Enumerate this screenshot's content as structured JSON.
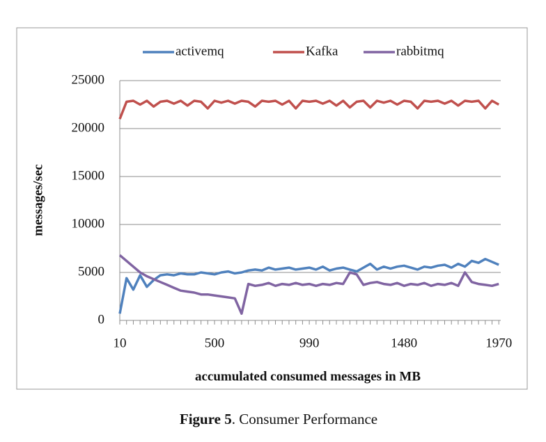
{
  "chart_data": {
    "type": "line",
    "caption_label": "Figure 5",
    "caption_text": ". Consumer Performance",
    "x_label": "accumulated consumed messages in MB",
    "y_label": "messages/sec",
    "legend": "top",
    "grid": true,
    "x": [
      10,
      45,
      80,
      115,
      150,
      185,
      220,
      255,
      290,
      325,
      360,
      395,
      430,
      465,
      500,
      535,
      570,
      605,
      640,
      675,
      710,
      745,
      780,
      815,
      850,
      885,
      920,
      955,
      990,
      1025,
      1060,
      1095,
      1130,
      1165,
      1200,
      1235,
      1270,
      1305,
      1340,
      1375,
      1410,
      1445,
      1480,
      1515,
      1550,
      1585,
      1620,
      1655,
      1690,
      1725,
      1760,
      1795,
      1830,
      1865,
      1900,
      1935,
      1970
    ],
    "series": [
      {
        "name": "activemq",
        "color": "#4f81bd",
        "values": [
          700,
          4400,
          3200,
          4700,
          3500,
          4200,
          4700,
          4800,
          4700,
          4900,
          4800,
          4800,
          5000,
          4900,
          4800,
          5000,
          5100,
          4900,
          5000,
          5200,
          5300,
          5200,
          5500,
          5300,
          5400,
          5500,
          5300,
          5400,
          5500,
          5300,
          5600,
          5200,
          5400,
          5500,
          5300,
          5100,
          5500,
          5900,
          5300,
          5600,
          5400,
          5600,
          5700,
          5500,
          5300,
          5600,
          5500,
          5700,
          5800,
          5500,
          5900,
          5600,
          6200,
          6000,
          6400,
          6100,
          5800
        ]
      },
      {
        "name": "Kafka",
        "color": "#c0504d",
        "values": [
          21000,
          22800,
          22900,
          22500,
          22900,
          22300,
          22800,
          22900,
          22600,
          22900,
          22400,
          22900,
          22800,
          22100,
          22900,
          22700,
          22900,
          22600,
          22900,
          22800,
          22300,
          22900,
          22800,
          22900,
          22500,
          22900,
          22100,
          22900,
          22800,
          22900,
          22600,
          22900,
          22400,
          22900,
          22200,
          22800,
          22900,
          22200,
          22900,
          22700,
          22900,
          22500,
          22900,
          22800,
          22100,
          22900,
          22800,
          22900,
          22600,
          22900,
          22400,
          22900,
          22800,
          22900,
          22100,
          22900,
          22500
        ]
      },
      {
        "name": "rabbitmq",
        "color": "#8064a2",
        "values": [
          6800,
          6200,
          5600,
          5000,
          4600,
          4300,
          4000,
          3700,
          3400,
          3100,
          3000,
          2900,
          2700,
          2700,
          2600,
          2500,
          2400,
          2300,
          700,
          3800,
          3600,
          3700,
          3900,
          3600,
          3800,
          3700,
          3900,
          3700,
          3800,
          3600,
          3800,
          3700,
          3900,
          3800,
          5000,
          4800,
          3700,
          3900,
          4000,
          3800,
          3700,
          3900,
          3600,
          3800,
          3700,
          3900,
          3600,
          3800,
          3700,
          3900,
          3600,
          5000,
          4000,
          3800,
          3700,
          3600,
          3800
        ]
      }
    ],
    "xlim": [
      10,
      1980
    ],
    "xticks": [
      10,
      500,
      990,
      1480,
      1970
    ],
    "ylim": [
      0,
      25000
    ],
    "yticks": [
      0,
      5000,
      10000,
      15000,
      20000,
      25000
    ]
  }
}
